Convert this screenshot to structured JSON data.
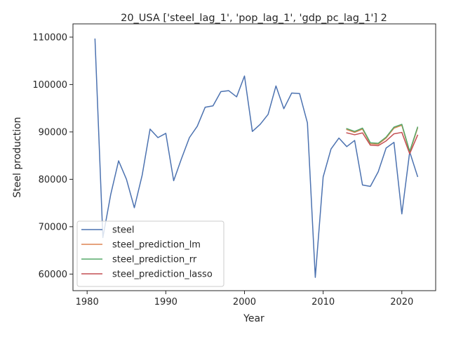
{
  "chart_data": {
    "type": "line",
    "title": "20_USA ['steel_lag_1', 'pop_lag_1', 'gdp_pc_lag_1'] 2",
    "xlabel": "Year",
    "ylabel": "Steel production",
    "xlim": [
      1978.2,
      2024.3
    ],
    "ylim": [
      56500,
      112800
    ],
    "x_ticks": [
      1980,
      1990,
      2000,
      2010,
      2020
    ],
    "y_ticks": [
      60000,
      70000,
      80000,
      90000,
      100000,
      110000
    ],
    "x_tick_labels": [
      "1980",
      "1990",
      "2000",
      "2010",
      "2020"
    ],
    "y_tick_labels": [
      "60000",
      "70000",
      "80000",
      "90000",
      "100000",
      "110000"
    ],
    "grid": false,
    "legend_position": "lower-left",
    "series": [
      {
        "name": "steel",
        "color": "#4c72b0",
        "x": [
          1981,
          1982,
          1983,
          1984,
          1985,
          1986,
          1987,
          1988,
          1989,
          1990,
          1991,
          1992,
          1993,
          1994,
          1995,
          1996,
          1997,
          1998,
          1999,
          2000,
          2001,
          2002,
          2003,
          2004,
          2005,
          2006,
          2007,
          2008,
          2009,
          2010,
          2011,
          2012,
          2013,
          2014,
          2015,
          2016,
          2017,
          2018,
          2019,
          2020,
          2021,
          2022
        ],
        "values": [
          109600,
          67700,
          76800,
          83900,
          80000,
          74000,
          80900,
          90600,
          88800,
          89700,
          79700,
          84400,
          88800,
          91200,
          95200,
          95500,
          98500,
          98700,
          97400,
          101800,
          90100,
          91600,
          93700,
          99700,
          94900,
          98200,
          98100,
          91900,
          59300,
          80500,
          86400,
          88700,
          86900,
          88200,
          78800,
          78500,
          81600,
          86600,
          87800,
          72700,
          85800,
          80600
        ]
      },
      {
        "name": "steel_prediction_lm",
        "color": "#dd8452",
        "x": [
          2013,
          2014,
          2015,
          2016,
          2017,
          2018,
          2019,
          2020,
          2021,
          2022
        ],
        "values": [
          90500,
          89900,
          90600,
          87500,
          87400,
          88700,
          90800,
          91400,
          85700,
          90800
        ]
      },
      {
        "name": "steel_prediction_rr",
        "color": "#55a868",
        "x": [
          2013,
          2014,
          2015,
          2016,
          2017,
          2018,
          2019,
          2020,
          2021,
          2022
        ],
        "values": [
          90700,
          90100,
          90800,
          87700,
          87600,
          88900,
          91000,
          91600,
          85900,
          91000
        ]
      },
      {
        "name": "steel_prediction_lasso",
        "color": "#c44e52",
        "x": [
          2013,
          2014,
          2015,
          2016,
          2017,
          2018,
          2019,
          2020,
          2021,
          2022
        ],
        "values": [
          89800,
          89400,
          89800,
          87200,
          87100,
          88100,
          89600,
          89900,
          85400,
          89300
        ]
      }
    ]
  }
}
